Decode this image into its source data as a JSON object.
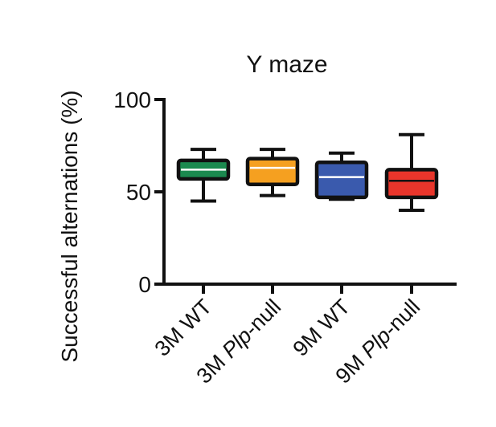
{
  "chart_data": {
    "type": "boxplot",
    "title": "Y maze",
    "ylabel": "Successful alternations (%)",
    "ylim": [
      0,
      100
    ],
    "yticks": [
      0,
      50,
      100
    ],
    "categories": [
      {
        "prefix": "3M ",
        "italic": "",
        "suffix": "WT"
      },
      {
        "prefix": "3M ",
        "italic": "Plp",
        "suffix": "-null"
      },
      {
        "prefix": "9M ",
        "italic": "",
        "suffix": "WT"
      },
      {
        "prefix": "9M ",
        "italic": "Plp",
        "suffix": "-null"
      }
    ],
    "boxes": [
      {
        "min": 45,
        "q1": 57,
        "median": 62,
        "q3": 67,
        "max": 73,
        "color": "#1b8a4f",
        "median_color": "#ffffff"
      },
      {
        "min": 48,
        "q1": 54,
        "median": 63,
        "q3": 68,
        "max": 73,
        "color": "#f5a020",
        "median_color": "#ffffff"
      },
      {
        "min": 46,
        "q1": 47,
        "median": 58,
        "q3": 66,
        "max": 71,
        "color": "#3a5aad",
        "median_color": "#ffffff"
      },
      {
        "min": 40,
        "q1": 47,
        "median": 56,
        "q3": 62,
        "max": 81,
        "color": "#e8352b",
        "median_color": "#111111"
      }
    ],
    "grid": false,
    "legend": "none"
  }
}
